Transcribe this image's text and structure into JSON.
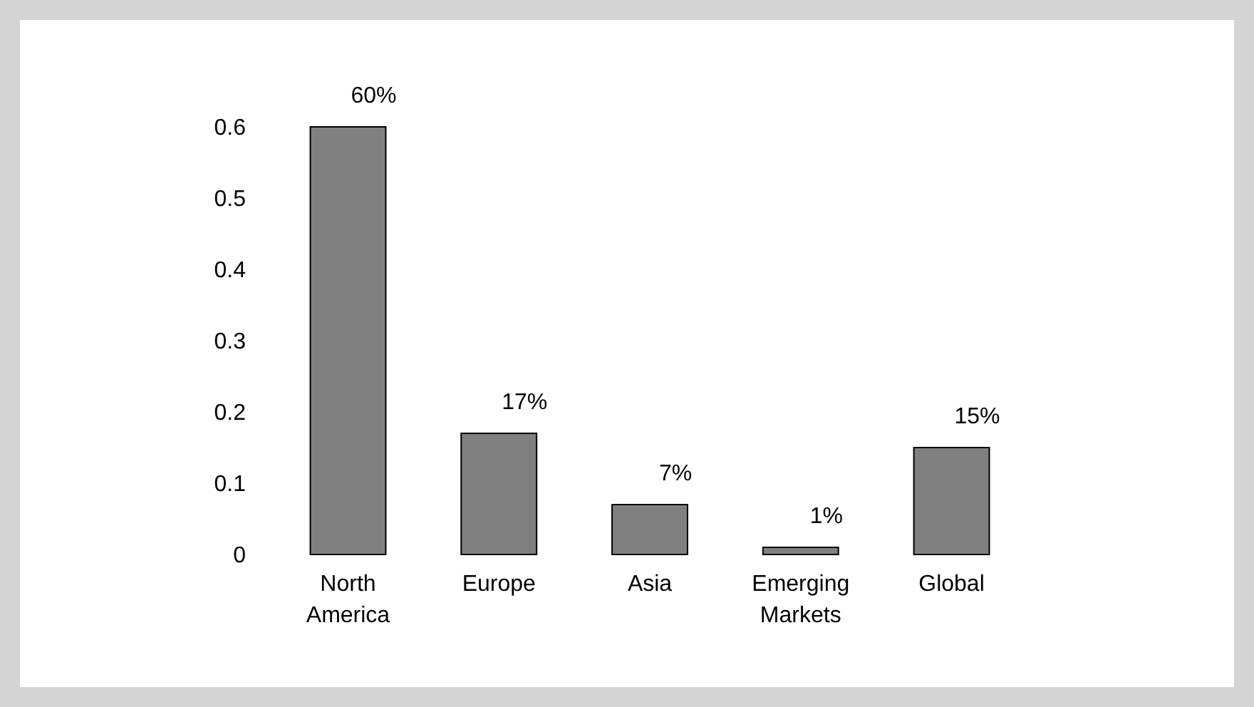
{
  "chart_data": {
    "type": "bar",
    "categories": [
      "North America",
      "Europe",
      "Asia",
      "Emerging Markets",
      "Global"
    ],
    "values": [
      0.6,
      0.17,
      0.07,
      0.01,
      0.15
    ],
    "value_labels": [
      "60%",
      "17%",
      "7%",
      "1%",
      "15%"
    ],
    "color": "#808080",
    "ylim": [
      0,
      0.6
    ],
    "yticks": [
      0,
      0.1,
      0.2,
      0.3,
      0.4,
      0.5,
      0.6
    ],
    "grid": false
  }
}
